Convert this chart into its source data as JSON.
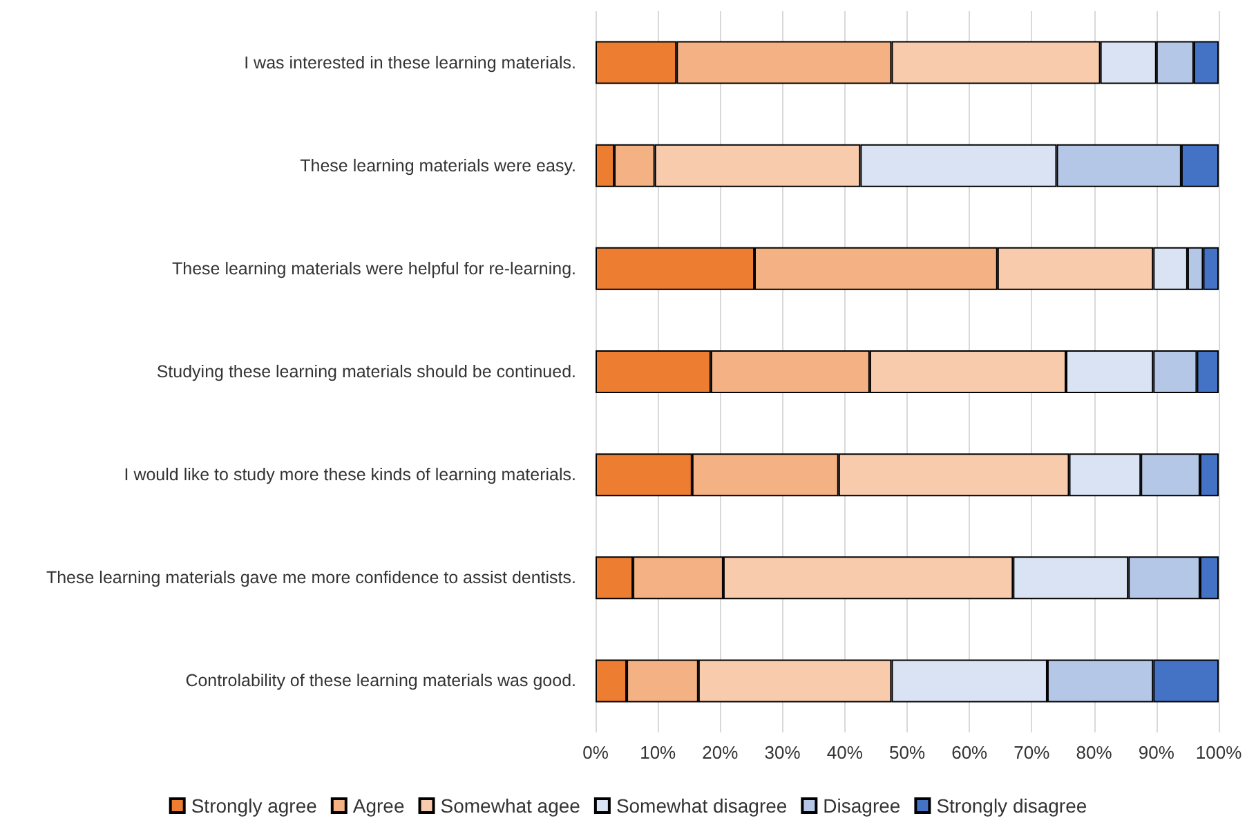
{
  "chart_data": {
    "type": "bar",
    "orientation": "horizontal",
    "stacked": true,
    "categories": [
      "I was interested in these learning materials.",
      "These learning materials were easy.",
      "These learning materials were helpful for re-learning.",
      "Studying these learning materials should be continued.",
      "I would like to study more these kinds of learning materials.",
      "These learning materials gave me more confidence to assist dentists.",
      "Controlability of these learning materials was good."
    ],
    "series": [
      {
        "name": "Strongly agree",
        "color": "#ed7d31",
        "values": [
          13,
          3,
          25.5,
          18.5,
          15.5,
          6,
          5
        ]
      },
      {
        "name": "Agree",
        "color": "#f4b183",
        "values": [
          34.5,
          6.5,
          39,
          25.5,
          23.5,
          14.5,
          11.5
        ]
      },
      {
        "name": "Somewhat agee",
        "color": "#f8cbad",
        "values": [
          33.5,
          33,
          25,
          31.5,
          37,
          46.5,
          31
        ]
      },
      {
        "name": "Somewhat disagree",
        "color": "#dae3f3",
        "values": [
          9,
          31.5,
          5.5,
          14,
          11.5,
          18.5,
          25
        ]
      },
      {
        "name": "Disagree",
        "color": "#b4c7e7",
        "values": [
          6,
          20,
          2.5,
          7,
          9.5,
          11.5,
          17
        ]
      },
      {
        "name": "Strongly disagree",
        "color": "#4472c4",
        "values": [
          4,
          6,
          2.5,
          3.5,
          3,
          3,
          10.5
        ]
      }
    ],
    "xlim": [
      0,
      100
    ],
    "xticks": [
      {
        "value": 0,
        "label": "0%"
      },
      {
        "value": 10,
        "label": "10%"
      },
      {
        "value": 20,
        "label": "20%"
      },
      {
        "value": 30,
        "label": "30%"
      },
      {
        "value": 40,
        "label": "40%"
      },
      {
        "value": 50,
        "label": "50%"
      },
      {
        "value": 60,
        "label": "60%"
      },
      {
        "value": 70,
        "label": "70%"
      },
      {
        "value": 80,
        "label": "80%"
      },
      {
        "value": 90,
        "label": "90%"
      },
      {
        "value": 100,
        "label": "100%"
      }
    ],
    "grid": "x",
    "legend": "bottom"
  }
}
